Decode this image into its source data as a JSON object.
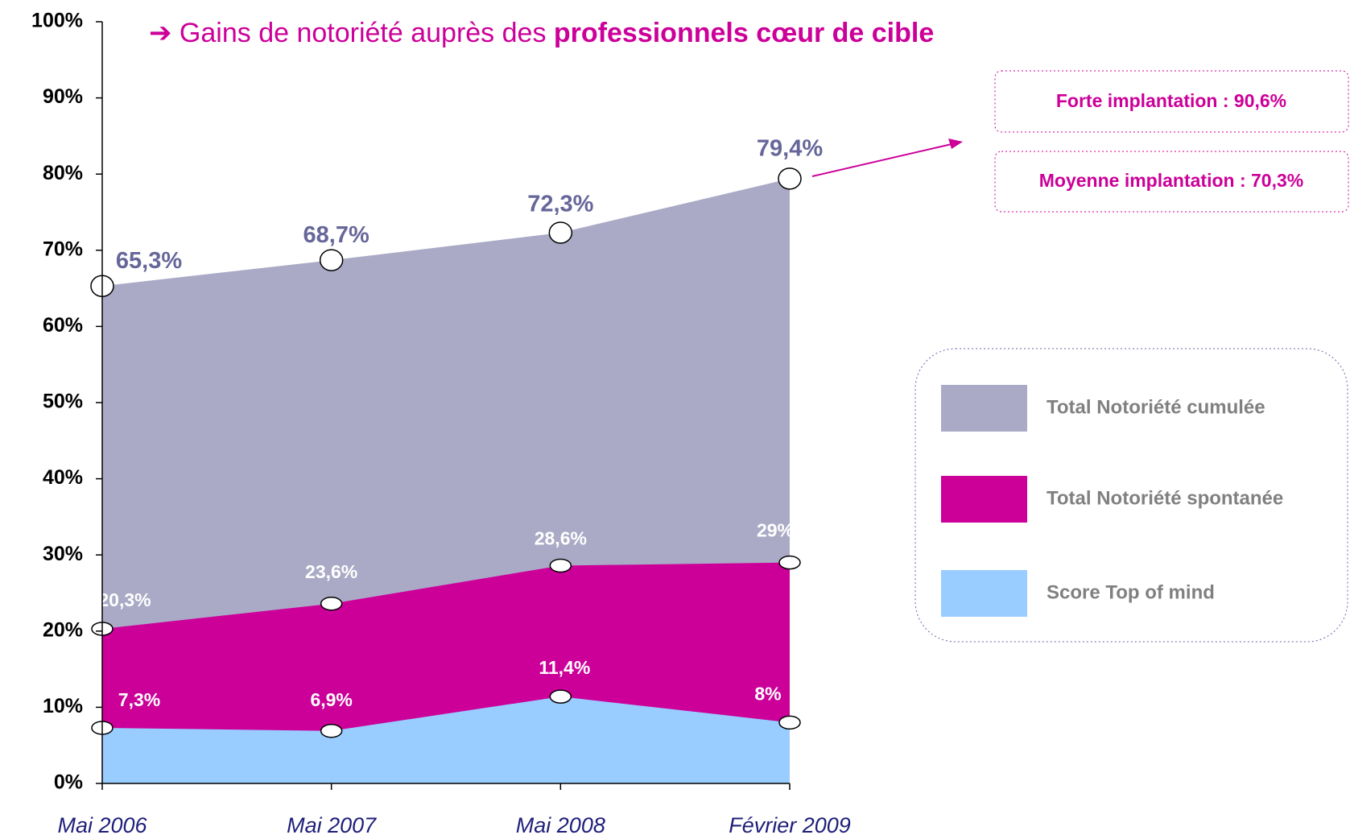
{
  "chart_data": {
    "type": "area",
    "title": "➔ Gains de notoriété auprès des",
    "title_emphasis": "professionnels cœur de cible",
    "categories": [
      "Mai 2006",
      "Mai 2007",
      "Mai 2008",
      "Février 2009"
    ],
    "series": [
      {
        "name": "Total Notoriété cumulée",
        "color": "#aaaac6",
        "label_color": "#66669a",
        "values": [
          65.3,
          68.7,
          72.3,
          79.4
        ],
        "value_labels": [
          "65,3%",
          "68,7%",
          "72,3%",
          "79,4%"
        ]
      },
      {
        "name": "Total Notoriété spontanée",
        "color": "#cc0099",
        "label_color": "#ffffff",
        "values": [
          20.3,
          23.6,
          28.6,
          29
        ],
        "value_labels": [
          "20,3%",
          "23,6%",
          "28,6%",
          "29%"
        ]
      },
      {
        "name": "Score Top of  mind",
        "color": "#99ccff",
        "label_color": "#ffffff",
        "values": [
          7.3,
          6.9,
          11.4,
          8
        ],
        "value_labels": [
          "7,3%",
          "6,9%",
          "11,4%",
          "8%"
        ]
      }
    ],
    "ylim": [
      0,
      100
    ],
    "yticks": [
      {
        "value": 0,
        "label": "0%"
      },
      {
        "value": 10,
        "label": "10%"
      },
      {
        "value": 20,
        "label": "20%"
      },
      {
        "value": 30,
        "label": "30%"
      },
      {
        "value": 40,
        "label": "40%"
      },
      {
        "value": 50,
        "label": "50%"
      },
      {
        "value": 60,
        "label": "60%"
      },
      {
        "value": 70,
        "label": "70%"
      },
      {
        "value": 80,
        "label": "80%"
      },
      {
        "value": 90,
        "label": "90%"
      },
      {
        "value": 100,
        "label": "100%"
      }
    ],
    "annotations": [
      "Forte implantation : 90,6%",
      "Moyenne implantation : 70,3%"
    ],
    "legend": "right"
  }
}
